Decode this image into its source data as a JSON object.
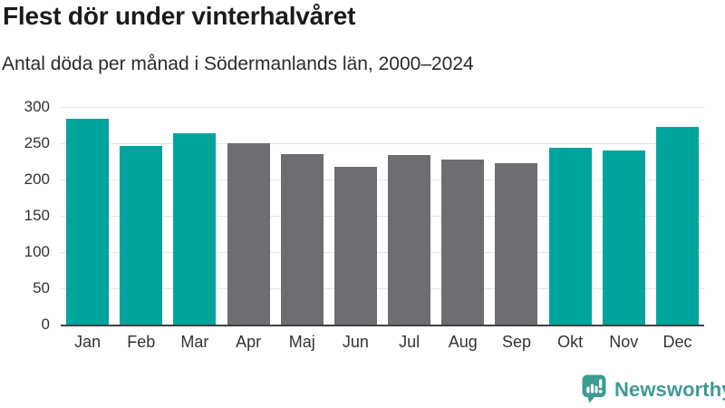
{
  "chart_data": {
    "type": "bar",
    "title": "Flest dör under vinterhalvåret",
    "subtitle": "Antal döda per månad i Södermanlands län, 2000–2024",
    "categories": [
      "Jan",
      "Feb",
      "Mar",
      "Apr",
      "Maj",
      "Jun",
      "Jul",
      "Aug",
      "Sep",
      "Okt",
      "Nov",
      "Dec"
    ],
    "values": [
      284,
      246,
      264,
      250,
      235,
      218,
      234,
      227,
      222,
      244,
      240,
      272
    ],
    "bar_colors": [
      "#00a49c",
      "#00a49c",
      "#00a49c",
      "#6d6d72",
      "#6d6d72",
      "#6d6d72",
      "#6d6d72",
      "#6d6d72",
      "#6d6d72",
      "#00a49c",
      "#00a49c",
      "#00a49c"
    ],
    "palette": {
      "winter_teal": "#00a49c",
      "summer_gray": "#6d6d72"
    },
    "xlabel": "",
    "ylabel": "",
    "ylim": [
      0,
      300
    ],
    "yticks": [
      0,
      50,
      100,
      150,
      200,
      250,
      300
    ],
    "grid": true,
    "gridline_color": "#e4e4e4",
    "axis_line_color": "#414141",
    "legend": "none"
  },
  "footer": {
    "brand": "Newsworthy",
    "brand_color": "#3f9a93"
  }
}
